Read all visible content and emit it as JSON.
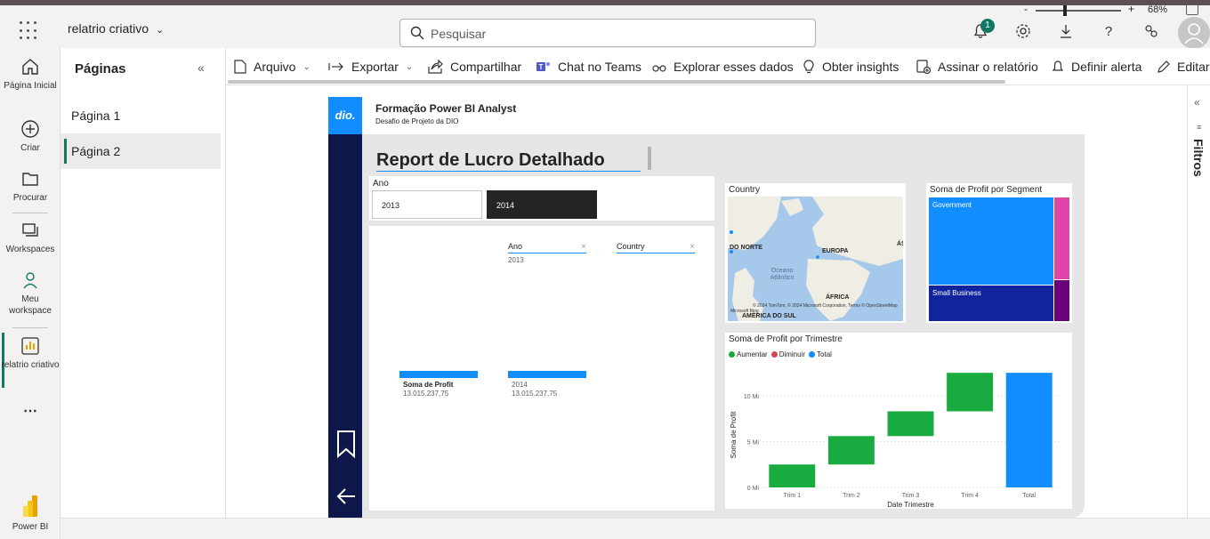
{
  "header": {
    "app_name": "relatrio criativo",
    "search_placeholder": "Pesquisar",
    "notification_count": "1"
  },
  "left_nav": {
    "items": [
      {
        "label": "Página Inicial"
      },
      {
        "label": "Criar"
      },
      {
        "label": "Procurar"
      },
      {
        "label": "Workspaces"
      },
      {
        "label": "Meu workspace"
      },
      {
        "label": "relatrio criativo"
      },
      {
        "label": "Power BI"
      }
    ]
  },
  "pages_panel": {
    "title": "Páginas",
    "pages": [
      "Página 1",
      "Página 2"
    ],
    "active_page": "Página 2"
  },
  "toolbar": {
    "arquivo": "Arquivo",
    "exportar": "Exportar",
    "compartilhar": "Compartilhar",
    "chat": "Chat no Teams",
    "explorar": "Explorar esses dados",
    "insights": "Obter insights",
    "assinar": "Assinar o relatório",
    "alerta": "Definir alerta",
    "editar": "Editar"
  },
  "filters_pane": {
    "label": "Filtros"
  },
  "report": {
    "logo": "dio.",
    "header_title": "Formação Power BI Analyst",
    "header_subtitle": "Desafio de Projeto da DIO",
    "title": "Report de Lucro Detalhado",
    "slicer": {
      "title": "Ano",
      "options": [
        "2013",
        "2014"
      ],
      "selected": "2014"
    },
    "filter_cards": [
      {
        "label": "Ano",
        "value": "2013"
      },
      {
        "label": "Country",
        "value": ""
      }
    ],
    "kpis": [
      {
        "name": "Soma de Profit",
        "value": "13.015.237,75"
      },
      {
        "name": "2014",
        "value": "13.015.237,75"
      }
    ],
    "map": {
      "title": "Country",
      "labels": [
        "DO NORTE",
        "EUROPA",
        "ÁS",
        "ÁFRICA",
        "AMÉRICA DO SUL"
      ],
      "sea": "Oceano Atlântico",
      "copyright": "© 2024 TomTom, © 2024 Microsoft Corporation, Terms © OpenStreetMap",
      "brand": "Microsoft Bing"
    },
    "treemap": {
      "title": "Soma de Profit por Segment",
      "segments": [
        "Government",
        "Small Business"
      ],
      "colors": {
        "Government": "#118dff",
        "Small Business": "#12239e",
        "third": "#e044a7",
        "fourth": "#6b007b"
      }
    }
  },
  "chart_data": {
    "type": "bar",
    "subtype": "waterfall",
    "title": "Soma de Profit por Trimestre",
    "xlabel": "Date Trimestre",
    "ylabel": "Soma de Profit",
    "categories": [
      "Trim 1",
      "Trim 2",
      "Trim 3",
      "Trim 4",
      "Total"
    ],
    "increases": [
      2.5,
      3.1,
      2.7,
      4.2
    ],
    "total": 12.5,
    "unit": "Mi",
    "yticks": [
      "0 Mi",
      "5 Mi",
      "10 Mi"
    ],
    "ylim": [
      0,
      13
    ],
    "legend": [
      "Aumentar",
      "Diminuir",
      "Total"
    ],
    "legend_colors": [
      "#1aab40",
      "#d64550",
      "#118dff"
    ],
    "legend_position": "top-left"
  },
  "status_bar": {
    "zoom_minus": "-",
    "zoom_plus": "+",
    "zoom": "68%"
  }
}
